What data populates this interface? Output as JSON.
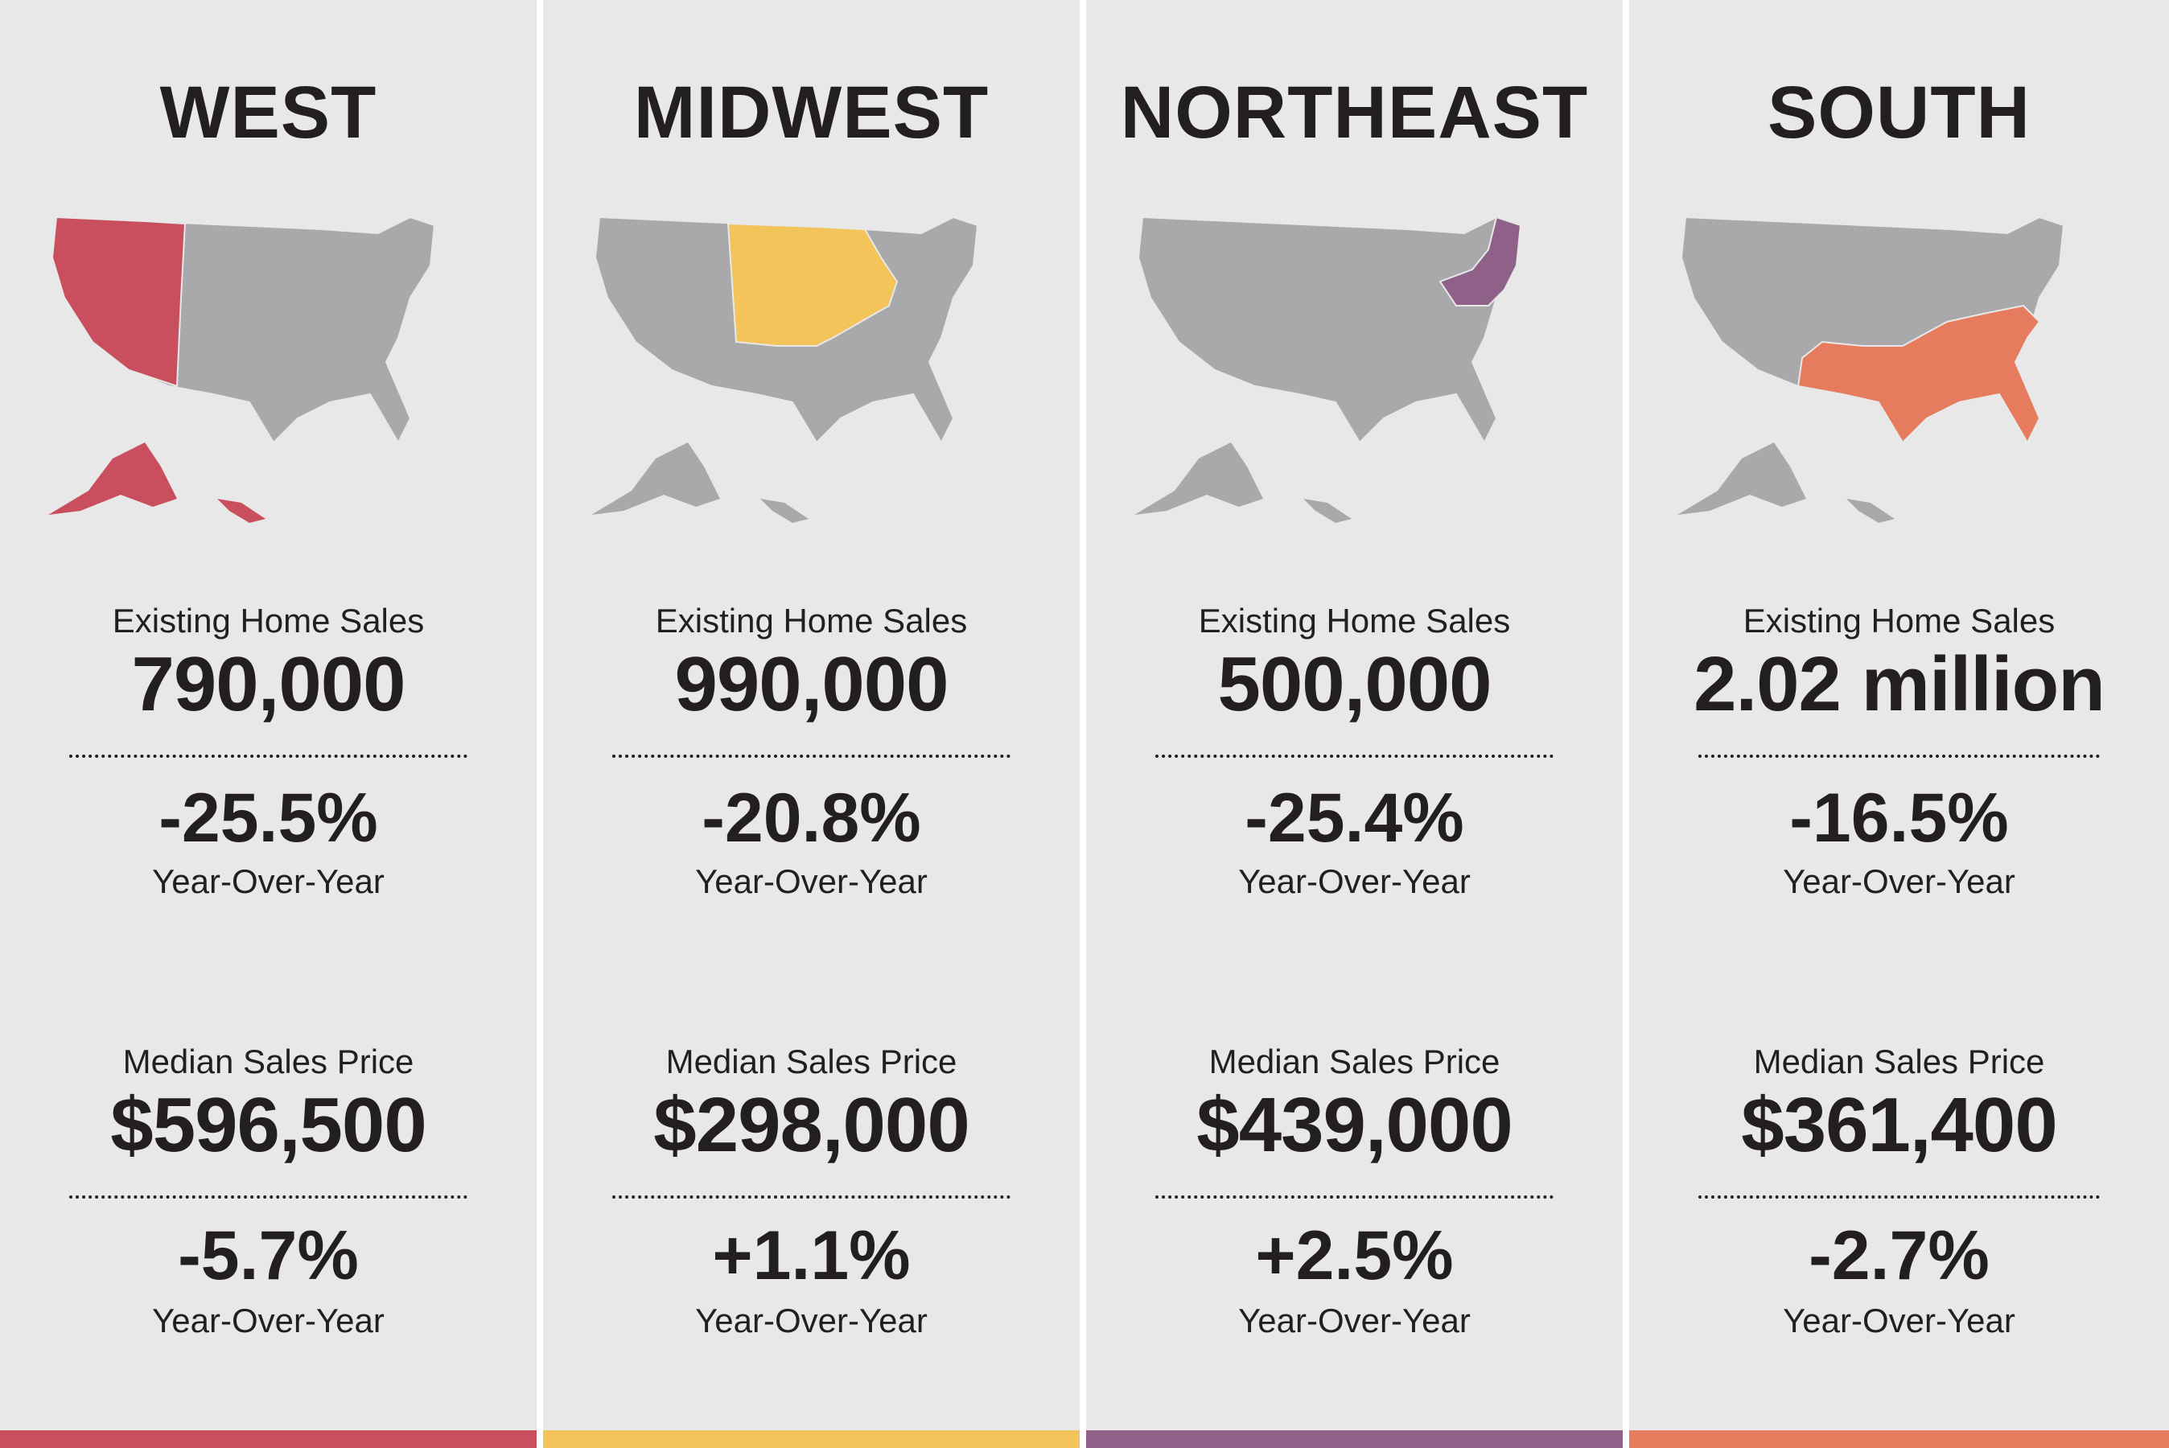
{
  "regions": [
    {
      "name": "WEST",
      "accent": "#c94f5e",
      "sales_label": "Existing Home Sales",
      "sales": "790,000",
      "sales_yoy": "-25.5%",
      "yoy_label": "Year-Over-Year",
      "price_label": "Median Sales Price",
      "price": "$596,500",
      "price_yoy": "-5.7%"
    },
    {
      "name": "MIDWEST",
      "accent": "#f2c45a",
      "sales_label": "Existing Home Sales",
      "sales": "990,000",
      "sales_yoy": "-20.8%",
      "yoy_label": "Year-Over-Year",
      "price_label": "Median Sales Price",
      "price": "$298,000",
      "price_yoy": "+1.1%"
    },
    {
      "name": "NORTHEAST",
      "accent": "#8f6189",
      "sales_label": "Existing Home Sales",
      "sales": "500,000",
      "sales_yoy": "-25.4%",
      "yoy_label": "Year-Over-Year",
      "price_label": "Median Sales Price",
      "price": "$439,000",
      "price_yoy": "+2.5%"
    },
    {
      "name": "SOUTH",
      "accent": "#e67b5e",
      "sales_label": "Existing Home Sales",
      "sales": "2.02 million",
      "sales_yoy": "-16.5%",
      "yoy_label": "Year-Over-Year",
      "price_label": "Median Sales Price",
      "price": "$361,400",
      "price_yoy": "-2.7%"
    }
  ],
  "map_base_color": "#a9a9ab",
  "icons": [
    "us-map-icon"
  ]
}
